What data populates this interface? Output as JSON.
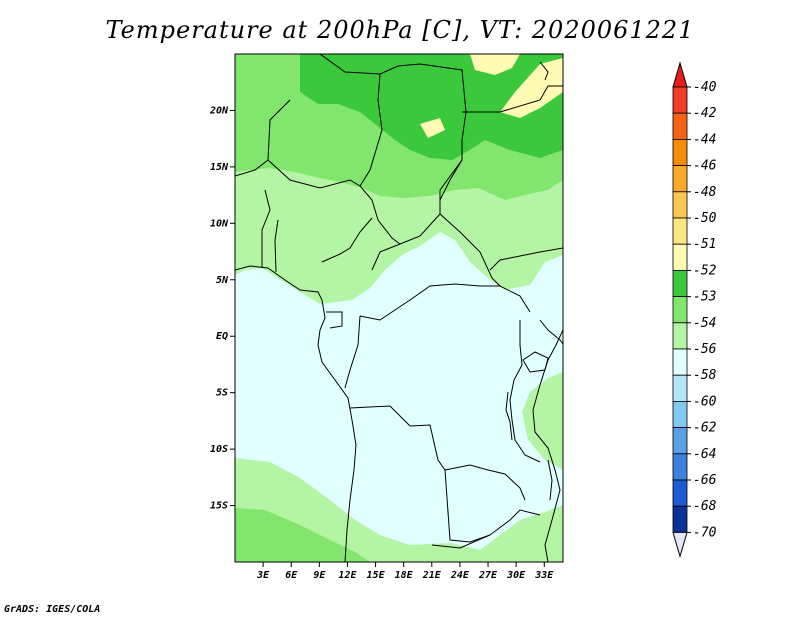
{
  "title": "Temperature at 200hPa [C], VT: 2020061221",
  "credit": "GrADS: IGES/COLA",
  "map": {
    "lon_range": [
      0,
      35
    ],
    "lat_range": [
      -20,
      25
    ],
    "lat_ticks": [
      {
        "value": 20,
        "label": "20N"
      },
      {
        "value": 15,
        "label": "15N"
      },
      {
        "value": 10,
        "label": "10N"
      },
      {
        "value": 5,
        "label": "5N"
      },
      {
        "value": 0,
        "label": "EQ"
      },
      {
        "value": -5,
        "label": "5S"
      },
      {
        "value": -10,
        "label": "10S"
      },
      {
        "value": -15,
        "label": "15S"
      }
    ],
    "lon_ticks": [
      {
        "value": 3,
        "label": "3E"
      },
      {
        "value": 6,
        "label": "6E"
      },
      {
        "value": 9,
        "label": "9E"
      },
      {
        "value": 12,
        "label": "12E"
      },
      {
        "value": 15,
        "label": "15E"
      },
      {
        "value": 18,
        "label": "18E"
      },
      {
        "value": 21,
        "label": "21E"
      },
      {
        "value": 24,
        "label": "24E"
      },
      {
        "value": 27,
        "label": "27E"
      },
      {
        "value": 30,
        "label": "30E"
      },
      {
        "value": 33,
        "label": "33E"
      }
    ],
    "field_colors": {
      "bg": "#e1ffff",
      "level_54": "#b4f5a5",
      "level_53": "#82e66e",
      "level_52": "#3cc83c",
      "level_51": "#fffab4"
    }
  },
  "colorbar": {
    "levels": [
      {
        "label": "-40",
        "color": "#f03c28"
      },
      {
        "label": "-42",
        "color": "#f56414"
      },
      {
        "label": "-44",
        "color": "#f58c0a"
      },
      {
        "label": "-46",
        "color": "#faaa28"
      },
      {
        "label": "-48",
        "color": "#fac850"
      },
      {
        "label": "-50",
        "color": "#fae682"
      },
      {
        "label": "-51",
        "color": "#fffab4"
      },
      {
        "label": "-52",
        "color": "#3cc83c"
      },
      {
        "label": "-53",
        "color": "#82e66e"
      },
      {
        "label": "-54",
        "color": "#b4f5a5"
      },
      {
        "label": "-56",
        "color": "#e1ffff"
      },
      {
        "label": "-58",
        "color": "#b4e6fa"
      },
      {
        "label": "-60",
        "color": "#82c8f0"
      },
      {
        "label": "-62",
        "color": "#5aa0e6"
      },
      {
        "label": "-64",
        "color": "#3c82dc"
      },
      {
        "label": "-66",
        "color": "#1e5ad2"
      },
      {
        "label": "-68",
        "color": "#0a3296"
      },
      {
        "label": "-70",
        "color": "#0a0a64"
      }
    ],
    "top_color": "#e61e1e",
    "bottom_color": "#e6e6fa"
  }
}
